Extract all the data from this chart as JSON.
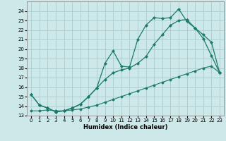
{
  "xlabel": "Humidex (Indice chaleur)",
  "background_color": "#cce8e8",
  "grid_color": "#aacccc",
  "line_color": "#1a7a6a",
  "xlim": [
    -0.5,
    23.5
  ],
  "ylim": [
    13,
    25
  ],
  "x_ticks": [
    0,
    1,
    2,
    3,
    4,
    5,
    6,
    7,
    8,
    9,
    10,
    11,
    12,
    13,
    14,
    15,
    16,
    17,
    18,
    19,
    20,
    21,
    22,
    23
  ],
  "y_ticks": [
    13,
    14,
    15,
    16,
    17,
    18,
    19,
    20,
    21,
    22,
    23,
    24
  ],
  "series1_x": [
    0,
    1,
    2,
    3,
    4,
    5,
    6,
    7,
    8,
    9,
    10,
    11,
    12,
    13,
    14,
    15,
    16,
    17,
    18,
    19,
    20,
    21,
    22,
    23
  ],
  "series1_y": [
    15.2,
    14.1,
    13.8,
    13.4,
    13.5,
    13.8,
    14.2,
    15.0,
    15.9,
    18.5,
    19.8,
    18.2,
    18.1,
    21.0,
    22.5,
    23.3,
    23.2,
    23.3,
    24.2,
    22.9,
    22.2,
    21.1,
    19.3,
    17.5
  ],
  "series2_x": [
    0,
    1,
    2,
    3,
    4,
    5,
    6,
    7,
    8,
    9,
    10,
    11,
    12,
    13,
    14,
    15,
    16,
    17,
    18,
    19,
    20,
    21,
    22,
    23
  ],
  "series2_y": [
    15.2,
    14.1,
    13.8,
    13.4,
    13.5,
    13.8,
    14.2,
    15.0,
    15.9,
    16.8,
    17.5,
    17.8,
    18.0,
    18.5,
    19.2,
    20.5,
    21.5,
    22.5,
    23.0,
    23.1,
    22.2,
    21.5,
    20.7,
    17.5
  ],
  "series3_x": [
    0,
    1,
    2,
    3,
    4,
    5,
    6,
    7,
    8,
    9,
    10,
    11,
    12,
    13,
    14,
    15,
    16,
    17,
    18,
    19,
    20,
    21,
    22,
    23
  ],
  "series3_y": [
    13.5,
    13.5,
    13.6,
    13.5,
    13.5,
    13.6,
    13.7,
    13.9,
    14.1,
    14.4,
    14.7,
    15.0,
    15.3,
    15.6,
    15.9,
    16.2,
    16.5,
    16.8,
    17.1,
    17.4,
    17.7,
    18.0,
    18.2,
    17.5
  ]
}
